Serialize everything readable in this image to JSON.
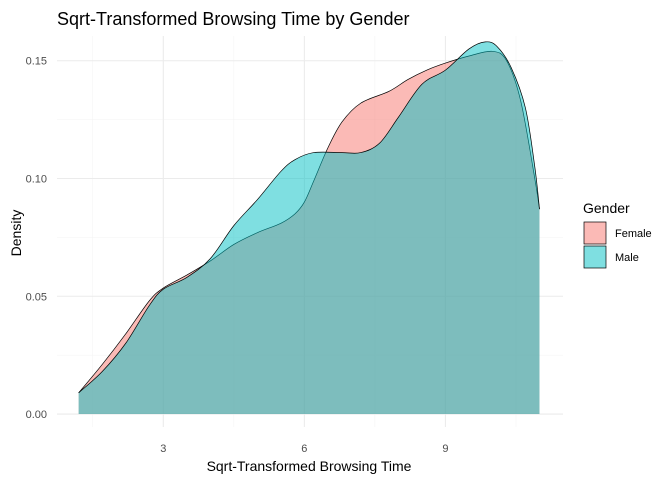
{
  "chart_data": {
    "type": "area",
    "title": "Sqrt-Transformed Browsing Time by Gender",
    "xlabel": "Sqrt-Transformed Browsing Time",
    "ylabel": "Density",
    "xlim": [
      0.74,
      11.5
    ],
    "ylim": [
      -0.0055,
      0.1605
    ],
    "x_ticks": [
      3,
      6,
      9
    ],
    "x_tick_labels": [
      "3",
      "6",
      "9"
    ],
    "x_minor_ticks": [
      1.5,
      4.5,
      7.5,
      10.5
    ],
    "y_ticks": [
      0.0,
      0.05,
      0.1,
      0.15
    ],
    "y_tick_labels": [
      "0.00",
      "0.05",
      "0.10",
      "0.15"
    ],
    "y_minor_ticks": [
      0.025,
      0.075,
      0.125
    ],
    "grid": true,
    "legend": {
      "title": "Gender",
      "position": "right"
    },
    "series": [
      {
        "name": "Female",
        "color": "#F8766D",
        "points": [
          [
            1.2,
            0.009
          ],
          [
            1.7,
            0.021
          ],
          [
            2.2,
            0.034
          ],
          [
            2.7,
            0.048
          ],
          [
            3.0,
            0.0535
          ],
          [
            3.5,
            0.059
          ],
          [
            4.0,
            0.065
          ],
          [
            4.5,
            0.072
          ],
          [
            5.0,
            0.077
          ],
          [
            5.5,
            0.081
          ],
          [
            5.8,
            0.085
          ],
          [
            6.0,
            0.09
          ],
          [
            6.2,
            0.099
          ],
          [
            6.5,
            0.113
          ],
          [
            6.8,
            0.124
          ],
          [
            7.2,
            0.132
          ],
          [
            7.8,
            0.137
          ],
          [
            8.2,
            0.142
          ],
          [
            8.6,
            0.146
          ],
          [
            9.0,
            0.149
          ],
          [
            9.5,
            0.152
          ],
          [
            10.0,
            0.154
          ],
          [
            10.3,
            0.15
          ],
          [
            10.6,
            0.133
          ],
          [
            10.9,
            0.1
          ],
          [
            11.0,
            0.087
          ]
        ]
      },
      {
        "name": "Male",
        "color": "#00BFC4",
        "points": [
          [
            1.2,
            0.009
          ],
          [
            1.7,
            0.018
          ],
          [
            2.2,
            0.03
          ],
          [
            2.7,
            0.046
          ],
          [
            3.0,
            0.053
          ],
          [
            3.5,
            0.058
          ],
          [
            4.0,
            0.066
          ],
          [
            4.5,
            0.08
          ],
          [
            5.0,
            0.091
          ],
          [
            5.5,
            0.103
          ],
          [
            5.8,
            0.108
          ],
          [
            6.2,
            0.111
          ],
          [
            6.8,
            0.111
          ],
          [
            7.2,
            0.111
          ],
          [
            7.6,
            0.115
          ],
          [
            8.0,
            0.126
          ],
          [
            8.5,
            0.14
          ],
          [
            9.0,
            0.146
          ],
          [
            9.5,
            0.155
          ],
          [
            9.85,
            0.158
          ],
          [
            10.1,
            0.156
          ],
          [
            10.4,
            0.147
          ],
          [
            10.7,
            0.13
          ],
          [
            10.9,
            0.105
          ],
          [
            11.0,
            0.087
          ]
        ]
      }
    ]
  }
}
